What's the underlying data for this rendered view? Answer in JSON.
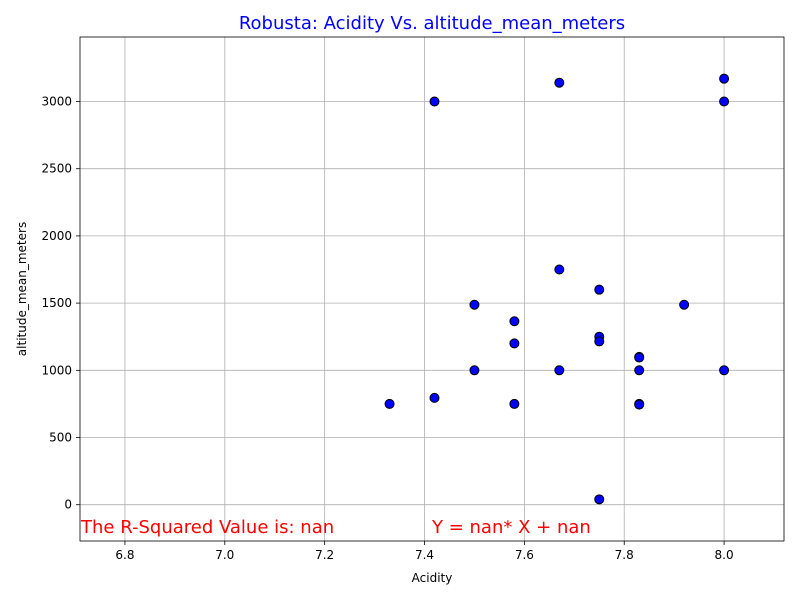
{
  "chart_data": {
    "type": "scatter",
    "title": "Robusta: Acidity Vs. altitude_mean_meters",
    "xlabel": "Acidity",
    "ylabel": "altitude_mean_meters",
    "xlim": [
      6.71,
      8.12
    ],
    "ylim": [
      -270,
      3480
    ],
    "x_ticks": [
      "6.8",
      "7.0",
      "7.2",
      "7.4",
      "7.6",
      "7.8",
      "8.0"
    ],
    "x_tick_values": [
      6.8,
      7.0,
      7.2,
      7.4,
      7.6,
      7.8,
      8.0
    ],
    "y_ticks": [
      "0",
      "500",
      "1000",
      "1500",
      "2000",
      "2500",
      "3000"
    ],
    "y_tick_values": [
      0,
      500,
      1000,
      1500,
      2000,
      2500,
      3000
    ],
    "grid": true,
    "colors": {
      "title": "#0000ff",
      "marker_fill": "#0000ff",
      "marker_edge": "#000000",
      "annotation": "#ff0000",
      "grid": "#b0b0b0"
    },
    "points": [
      {
        "x": 7.33,
        "y": 750
      },
      {
        "x": 7.42,
        "y": 3000
      },
      {
        "x": 7.42,
        "y": 795
      },
      {
        "x": 7.5,
        "y": 1488
      },
      {
        "x": 7.5,
        "y": 1000
      },
      {
        "x": 7.58,
        "y": 1365
      },
      {
        "x": 7.58,
        "y": 1200
      },
      {
        "x": 7.58,
        "y": 750
      },
      {
        "x": 7.67,
        "y": 3140
      },
      {
        "x": 7.67,
        "y": 1750
      },
      {
        "x": 7.67,
        "y": 1000
      },
      {
        "x": 7.75,
        "y": 1600
      },
      {
        "x": 7.75,
        "y": 1250
      },
      {
        "x": 7.75,
        "y": 1215
      },
      {
        "x": 7.75,
        "y": 40
      },
      {
        "x": 7.83,
        "y": 1100
      },
      {
        "x": 7.83,
        "y": 1095
      },
      {
        "x": 7.83,
        "y": 1000
      },
      {
        "x": 7.83,
        "y": 750
      },
      {
        "x": 7.83,
        "y": 745
      },
      {
        "x": 7.92,
        "y": 1488
      },
      {
        "x": 8.0,
        "y": 3170
      },
      {
        "x": 8.0,
        "y": 3000
      },
      {
        "x": 8.0,
        "y": 1000
      }
    ],
    "annotations": {
      "r_squared": "The R-Squared Value is: nan",
      "equation": "Y = nan* X + nan"
    }
  }
}
